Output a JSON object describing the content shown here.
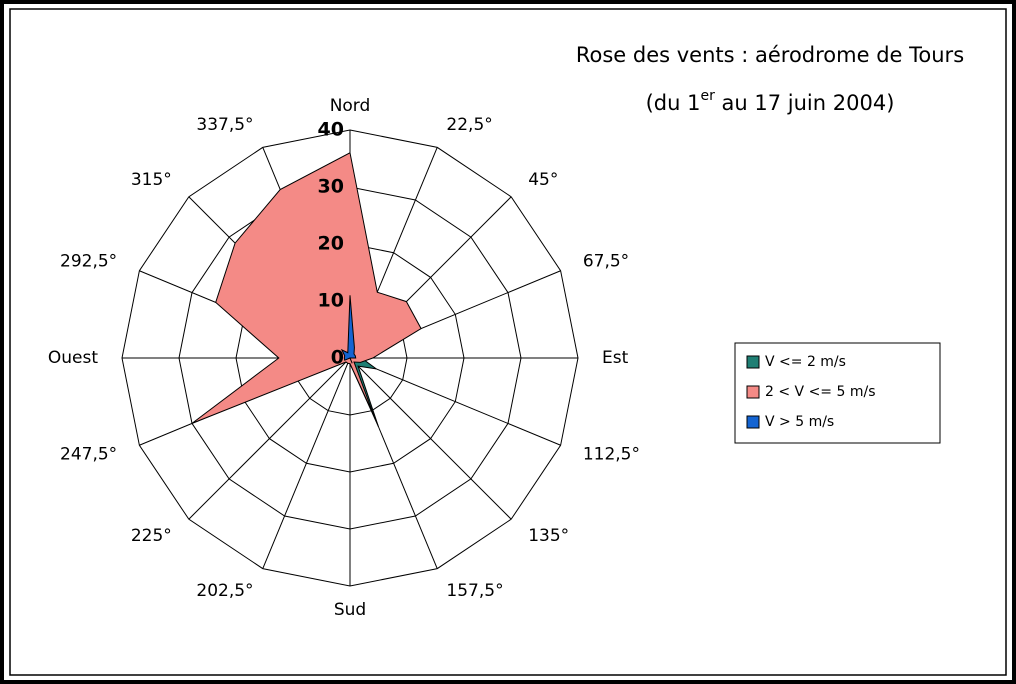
{
  "chart_data": {
    "type": "radar",
    "title": "Rose des vents : aérodrome de Tours",
    "subtitle_parts": [
      "(du 1",
      "er",
      " au 17 juin 2004)"
    ],
    "categories": [
      "Nord",
      "22,5°",
      "45°",
      "67,5°",
      "Est",
      "112,5°",
      "135°",
      "157,5°",
      "Sud",
      "202,5°",
      "225°",
      "247,5°",
      "Ouest",
      "292,5°",
      "315°",
      "337,5°"
    ],
    "series": [
      {
        "name": "V <= 2 m/s",
        "color": "#1f7f74",
        "values": [
          1,
          1,
          1,
          1,
          2,
          5,
          2,
          13,
          1,
          1,
          1,
          1,
          1,
          1,
          1,
          1
        ]
      },
      {
        "name": "2 < V <= 5 m/s",
        "color": "#f48a86",
        "values": [
          36,
          12.5,
          14,
          13.5,
          4,
          2,
          1,
          11,
          1,
          1,
          1,
          30,
          12.5,
          25.5,
          28.5,
          32
        ]
      },
      {
        "name": "V > 5 m/s",
        "color": "#1464d2",
        "values": [
          11,
          2,
          1,
          1,
          1,
          0,
          0,
          1,
          0,
          0,
          0,
          1,
          1,
          1,
          2,
          1
        ]
      }
    ],
    "ylim": [
      0,
      40
    ],
    "yticks": [
      0,
      10,
      20,
      30,
      40
    ],
    "grid": true,
    "legend": "right"
  }
}
